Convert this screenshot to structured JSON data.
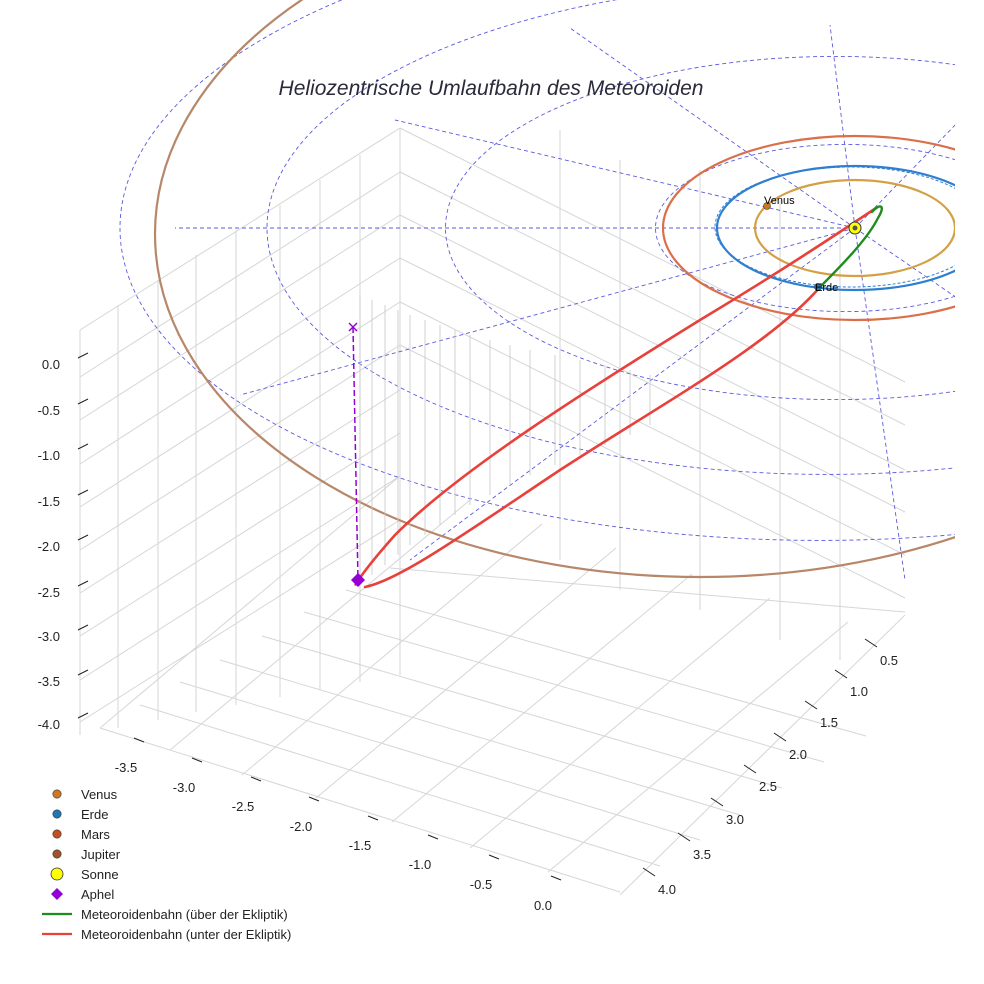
{
  "chart_data": {
    "type": "line",
    "title": "Heliozentrische Umlaufbahn des Meteoroiden",
    "axes": {
      "x_ticks": [
        "-3.5",
        "-3.0",
        "-2.5",
        "-2.0",
        "-1.5",
        "-1.0",
        "-0.5",
        "0.0"
      ],
      "y_ticks": [
        "0.5",
        "1.0",
        "1.5",
        "2.0",
        "2.5",
        "3.0",
        "3.5",
        "4.0"
      ],
      "z_ticks": [
        "0.0",
        "-0.5",
        "-1.0",
        "-1.5",
        "-2.0",
        "-2.5",
        "-3.0",
        "-3.5",
        "-4.0"
      ],
      "xlim": [
        -3.8,
        0.3
      ],
      "ylim": [
        0.3,
        4.3
      ],
      "zlim": [
        -4.1,
        0.2
      ],
      "grid": true
    },
    "planets": [
      {
        "name": "Venus",
        "orbit_radius_au": 0.72,
        "color": "#d4a045",
        "marker_color": "#cc7a22",
        "label": "Venus"
      },
      {
        "name": "Erde",
        "orbit_radius_au": 1.0,
        "color": "#2f7fd0",
        "marker_color": "#1f77b4",
        "label": "Erde"
      },
      {
        "name": "Mars",
        "orbit_radius_au": 1.52,
        "color": "#d9704a",
        "marker_color": "#c4501e"
      },
      {
        "name": "Jupiter",
        "orbit_radius_au": 5.2,
        "color": "#b7876a",
        "marker_color": "#a0522d"
      }
    ],
    "sun": {
      "name": "Sonne",
      "color": "#ffff00"
    },
    "aphel": {
      "name": "Aphel",
      "z_au": -2.6,
      "color": "#9400d3"
    },
    "series": [
      {
        "name": "Meteoroidenbahn (über der Ekliptik)",
        "color": "#1e8c1e"
      },
      {
        "name": "Meteoroidenbahn (unter der Ekliptik)",
        "color": "#e8403a"
      }
    ],
    "legend": {
      "position": "bottom-left",
      "entries": [
        {
          "label": "Venus",
          "color": "#cc7a22",
          "shape": "circle"
        },
        {
          "label": "Erde",
          "color": "#1f77b4",
          "shape": "circle"
        },
        {
          "label": "Mars",
          "color": "#c4501e",
          "shape": "circle"
        },
        {
          "label": "Jupiter",
          "color": "#a0522d",
          "shape": "circle"
        },
        {
          "label": "Sonne",
          "color": "#ffff00",
          "shape": "big-circle"
        },
        {
          "label": "Aphel",
          "color": "#9400d3",
          "shape": "diamond"
        },
        {
          "label": "Meteoroidenbahn (über der Ekliptik)",
          "color": "#1e8c1e",
          "shape": "line"
        },
        {
          "label": "Meteoroidenbahn (unter der Ekliptik)",
          "color": "#e8403a",
          "shape": "line"
        }
      ]
    }
  }
}
